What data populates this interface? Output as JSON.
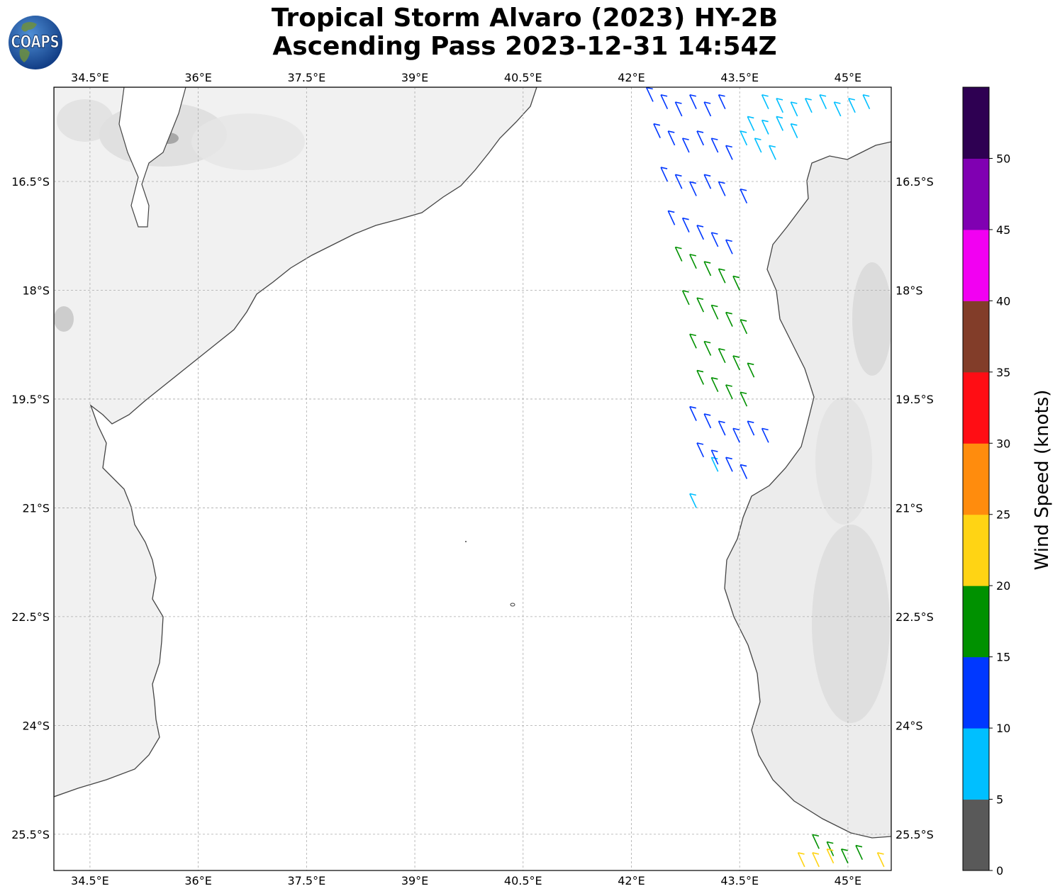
{
  "title": {
    "line1": "Tropical Storm Alvaro (2023) HY-2B",
    "line2": "Ascending Pass 2023-12-31 14:54Z"
  },
  "logo": {
    "text": "COAPS",
    "icon": "globe-logo-icon"
  },
  "map": {
    "lon_range": [
      34.0,
      45.6
    ],
    "lat_range": [
      -26.0,
      -15.2
    ],
    "lon_ticks": [
      34.5,
      36.0,
      37.5,
      39.0,
      40.5,
      42.0,
      43.5,
      45.0
    ],
    "lon_labels": [
      "34.5°E",
      "36°E",
      "37.5°E",
      "39°E",
      "40.5°E",
      "42°E",
      "43.5°E",
      "45°E"
    ],
    "lat_ticks": [
      -16.5,
      -18.0,
      -19.5,
      -21.0,
      -22.5,
      -24.0,
      -25.5
    ],
    "lat_labels": [
      "16.5°S",
      "18°S",
      "19.5°S",
      "21°S",
      "22.5°S",
      "24°S",
      "25.5°S"
    ],
    "gridlines": true,
    "land_color": "#f0f0f0",
    "ocean_color": "#ffffff",
    "coastline_color": "#444444"
  },
  "colorbar": {
    "label": "Wind Speed (knots)",
    "tick_labels": [
      "0",
      "5",
      "10",
      "15",
      "20",
      "25",
      "30",
      "35",
      "40",
      "45",
      "50"
    ],
    "colors": [
      "#595959",
      "#00bfff",
      "#0038ff",
      "#009100",
      "#ffd414",
      "#ff8c0d",
      "#ff0d14",
      "#823d29",
      "#f200f2",
      "#8000b2",
      "#2e0052"
    ]
  },
  "chart_data": {
    "type": "scatter",
    "description_units": "lon (deg E), lat (deg, negative = S), wind speed knots, wind direction toward-deg",
    "series": [
      {
        "speed_class": "5-10",
        "points": [
          [
            43.9,
            -15.5
          ],
          [
            44.1,
            -15.55
          ],
          [
            44.3,
            -15.6
          ],
          [
            44.5,
            -15.55
          ],
          [
            44.7,
            -15.5
          ],
          [
            44.9,
            -15.6
          ],
          [
            45.1,
            -15.55
          ],
          [
            45.3,
            -15.5
          ],
          [
            43.7,
            -15.8
          ],
          [
            43.9,
            -15.85
          ],
          [
            44.1,
            -15.8
          ],
          [
            44.3,
            -15.9
          ],
          [
            43.6,
            -16.0
          ],
          [
            43.8,
            -16.1
          ],
          [
            44.0,
            -16.2
          ],
          [
            43.2,
            -20.5
          ],
          [
            42.9,
            -21.0
          ]
        ]
      },
      {
        "speed_class": "10-15",
        "points": [
          [
            42.3,
            -15.4
          ],
          [
            42.5,
            -15.5
          ],
          [
            42.7,
            -15.6
          ],
          [
            42.9,
            -15.5
          ],
          [
            43.1,
            -15.6
          ],
          [
            43.3,
            -15.5
          ],
          [
            42.4,
            -15.9
          ],
          [
            42.6,
            -16.0
          ],
          [
            42.8,
            -16.1
          ],
          [
            43.0,
            -16.0
          ],
          [
            43.2,
            -16.1
          ],
          [
            43.4,
            -16.2
          ],
          [
            42.5,
            -16.5
          ],
          [
            42.7,
            -16.6
          ],
          [
            42.9,
            -16.7
          ],
          [
            43.1,
            -16.6
          ],
          [
            43.3,
            -16.7
          ],
          [
            43.6,
            -16.8
          ],
          [
            42.6,
            -17.1
          ],
          [
            42.8,
            -17.2
          ],
          [
            43.0,
            -17.3
          ],
          [
            43.2,
            -17.4
          ],
          [
            43.4,
            -17.5
          ],
          [
            42.9,
            -19.8
          ],
          [
            43.1,
            -19.9
          ],
          [
            43.3,
            -20.0
          ],
          [
            43.5,
            -20.1
          ],
          [
            43.7,
            -20.0
          ],
          [
            43.9,
            -20.1
          ],
          [
            43.0,
            -20.3
          ],
          [
            43.2,
            -20.4
          ],
          [
            43.4,
            -20.5
          ],
          [
            43.6,
            -20.6
          ]
        ]
      },
      {
        "speed_class": "15-20",
        "points": [
          [
            42.7,
            -17.6
          ],
          [
            42.9,
            -17.7
          ],
          [
            43.1,
            -17.8
          ],
          [
            43.3,
            -17.9
          ],
          [
            43.5,
            -18.0
          ],
          [
            42.8,
            -18.2
          ],
          [
            43.0,
            -18.3
          ],
          [
            43.2,
            -18.4
          ],
          [
            43.4,
            -18.5
          ],
          [
            43.6,
            -18.6
          ],
          [
            42.9,
            -18.8
          ],
          [
            43.1,
            -18.9
          ],
          [
            43.3,
            -19.0
          ],
          [
            43.5,
            -19.1
          ],
          [
            43.7,
            -19.2
          ],
          [
            43.0,
            -19.3
          ],
          [
            43.2,
            -19.4
          ],
          [
            43.4,
            -19.5
          ],
          [
            43.6,
            -19.6
          ],
          [
            44.6,
            -25.7
          ],
          [
            44.8,
            -25.8
          ],
          [
            45.0,
            -25.9
          ],
          [
            45.2,
            -25.85
          ]
        ]
      },
      {
        "speed_class": "20-25",
        "points": [
          [
            44.4,
            -25.95
          ],
          [
            44.6,
            -25.95
          ],
          [
            44.8,
            -25.9
          ],
          [
            45.5,
            -25.95
          ]
        ]
      }
    ]
  }
}
